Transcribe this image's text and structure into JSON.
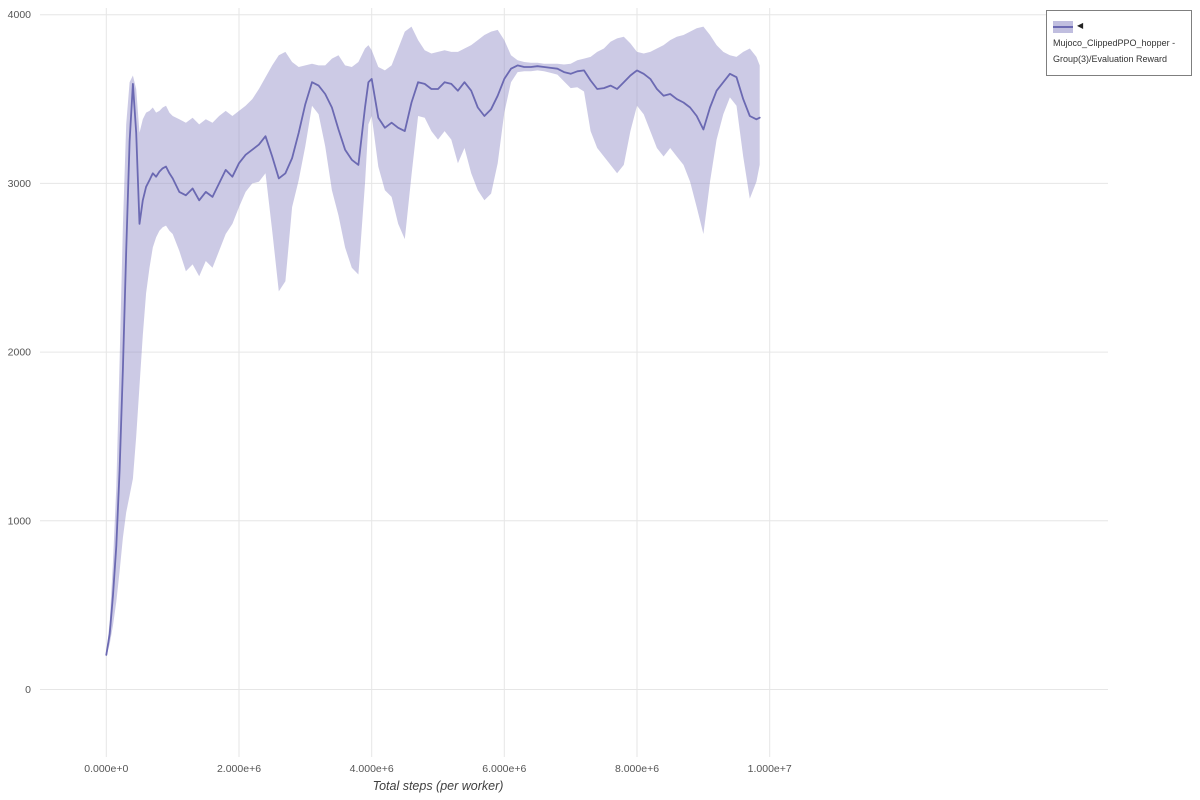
{
  "legend": {
    "marker": "◀",
    "label": "Mujoco_ClippedPPO_hopper - Group(3)/Evaluation Reward"
  },
  "colors": {
    "line": "#6b69b2",
    "band": "#8d89c5",
    "band_opacity": 0.45,
    "grid": "#e6e6e6",
    "tick_text": "#555555"
  },
  "chart_data": {
    "type": "line",
    "title": "",
    "xlabel": "Total steps (per worker)",
    "ylabel": "",
    "legend_position": "top-right-outside",
    "grid": true,
    "xlim": [
      -1000000.0,
      15100000.0
    ],
    "ylim": [
      -400,
      4040
    ],
    "x_tick_values": [
      0,
      2000000.0,
      4000000.0,
      6000000.0,
      8000000.0,
      10000000.0
    ],
    "x_tick_labels": [
      "0.000e+0",
      "2.000e+6",
      "4.000e+6",
      "6.000e+6",
      "8.000e+6",
      "1.000e+7"
    ],
    "y_tick_values": [
      0,
      1000,
      2000,
      3000,
      4000
    ],
    "y_tick_labels": [
      "0",
      "1000",
      "2000",
      "3000",
      "4000"
    ],
    "point_format": [
      "x",
      "mean",
      "lower",
      "upper"
    ],
    "series": [
      {
        "name": "Mujoco_ClippedPPO_hopper - Group(3)/Evaluation Reward",
        "points": [
          [
            0,
            205,
            195,
            215
          ],
          [
            50000.0,
            330,
            270,
            400
          ],
          [
            100000.0,
            560,
            380,
            760
          ],
          [
            150000.0,
            850,
            520,
            1200
          ],
          [
            200000.0,
            1300,
            700,
            1950
          ],
          [
            250000.0,
            1900,
            900,
            2750
          ],
          [
            300000.0,
            2600,
            1050,
            3350
          ],
          [
            350000.0,
            3250,
            1150,
            3600
          ],
          [
            400000.0,
            3590,
            1250,
            3640
          ],
          [
            450000.0,
            3300,
            1500,
            3560
          ],
          [
            500000.0,
            2760,
            1800,
            3300
          ],
          [
            550000.0,
            2900,
            2100,
            3380
          ],
          [
            600000.0,
            2980,
            2350,
            3420
          ],
          [
            650000.0,
            3020,
            2500,
            3430
          ],
          [
            700000.0,
            3060,
            2620,
            3450
          ],
          [
            750000.0,
            3040,
            2680,
            3420
          ],
          [
            800000.0,
            3070,
            2720,
            3430
          ],
          [
            850000.0,
            3090,
            2740,
            3450
          ],
          [
            900000.0,
            3100,
            2750,
            3460
          ],
          [
            950000.0,
            3060,
            2720,
            3420
          ],
          [
            1000000.0,
            3030,
            2700,
            3400
          ],
          [
            1100000.0,
            2950,
            2600,
            3380
          ],
          [
            1200000.0,
            2930,
            2480,
            3360
          ],
          [
            1300000.0,
            2970,
            2520,
            3390
          ],
          [
            1400000.0,
            2900,
            2450,
            3350
          ],
          [
            1500000.0,
            2950,
            2540,
            3380
          ],
          [
            1600000.0,
            2920,
            2500,
            3360
          ],
          [
            1700000.0,
            3000,
            2600,
            3400
          ],
          [
            1800000.0,
            3080,
            2700,
            3430
          ],
          [
            1900000.0,
            3040,
            2760,
            3400
          ],
          [
            2000000.0,
            3120,
            2860,
            3430
          ],
          [
            2100000.0,
            3170,
            2950,
            3460
          ],
          [
            2200000.0,
            3200,
            3000,
            3500
          ],
          [
            2300000.0,
            3230,
            3010,
            3560
          ],
          [
            2400000.0,
            3280,
            3060,
            3630
          ],
          [
            2500000.0,
            3160,
            2720,
            3700
          ],
          [
            2600000.0,
            3030,
            2360,
            3760
          ],
          [
            2700000.0,
            3060,
            2420,
            3780
          ],
          [
            2800000.0,
            3150,
            2860,
            3720
          ],
          [
            2900000.0,
            3300,
            3020,
            3690
          ],
          [
            3000000.0,
            3470,
            3220,
            3700
          ],
          [
            3100000.0,
            3600,
            3460,
            3710
          ],
          [
            3200000.0,
            3580,
            3410,
            3700
          ],
          [
            3300000.0,
            3530,
            3220,
            3700
          ],
          [
            3400000.0,
            3450,
            2960,
            3740
          ],
          [
            3500000.0,
            3320,
            2810,
            3760
          ],
          [
            3600000.0,
            3200,
            2620,
            3700
          ],
          [
            3700000.0,
            3140,
            2500,
            3690
          ],
          [
            3800000.0,
            3110,
            2460,
            3720
          ],
          [
            3900000.0,
            3450,
            3000,
            3800
          ],
          [
            3950000.0,
            3600,
            3350,
            3820
          ],
          [
            4000000.0,
            3620,
            3400,
            3790
          ],
          [
            4100000.0,
            3390,
            3100,
            3690
          ],
          [
            4200000.0,
            3330,
            2960,
            3670
          ],
          [
            4300000.0,
            3360,
            2920,
            3700
          ],
          [
            4400000.0,
            3330,
            2760,
            3800
          ],
          [
            4500000.0,
            3310,
            2670,
            3900
          ],
          [
            4600000.0,
            3480,
            3050,
            3930
          ],
          [
            4700000.0,
            3600,
            3400,
            3850
          ],
          [
            4800000.0,
            3590,
            3390,
            3790
          ],
          [
            4900000.0,
            3560,
            3310,
            3770
          ],
          [
            5000000.0,
            3560,
            3260,
            3780
          ],
          [
            5100000.0,
            3600,
            3310,
            3790
          ],
          [
            5200000.0,
            3590,
            3260,
            3780
          ],
          [
            5300000.0,
            3550,
            3120,
            3780
          ],
          [
            5400000.0,
            3600,
            3210,
            3800
          ],
          [
            5500000.0,
            3550,
            3060,
            3820
          ],
          [
            5600000.0,
            3450,
            2960,
            3850
          ],
          [
            5700000.0,
            3400,
            2900,
            3880
          ],
          [
            5800000.0,
            3440,
            2940,
            3900
          ],
          [
            5900000.0,
            3520,
            3120,
            3910
          ],
          [
            6000000.0,
            3620,
            3420,
            3850
          ],
          [
            6100000.0,
            3680,
            3600,
            3760
          ],
          [
            6200000.0,
            3700,
            3660,
            3730
          ],
          [
            6300000.0,
            3690,
            3665,
            3720
          ],
          [
            6400000.0,
            3690,
            3665,
            3715
          ],
          [
            6500000.0,
            3695,
            3670,
            3715
          ],
          [
            6600000.0,
            3690,
            3665,
            3710
          ],
          [
            6700000.0,
            3685,
            3655,
            3710
          ],
          [
            6800000.0,
            3680,
            3645,
            3710
          ],
          [
            6900000.0,
            3660,
            3605,
            3705
          ],
          [
            7000000.0,
            3650,
            3565,
            3710
          ],
          [
            7100000.0,
            3665,
            3570,
            3730
          ],
          [
            7200000.0,
            3670,
            3545,
            3740
          ],
          [
            7300000.0,
            3610,
            3310,
            3750
          ],
          [
            7400000.0,
            3560,
            3210,
            3780
          ],
          [
            7500000.0,
            3565,
            3160,
            3800
          ],
          [
            7600000.0,
            3580,
            3110,
            3840
          ],
          [
            7700000.0,
            3560,
            3060,
            3860
          ],
          [
            7800000.0,
            3600,
            3110,
            3870
          ],
          [
            7900000.0,
            3640,
            3310,
            3830
          ],
          [
            8000000.0,
            3670,
            3460,
            3780
          ],
          [
            8100000.0,
            3650,
            3410,
            3770
          ],
          [
            8200000.0,
            3620,
            3310,
            3780
          ],
          [
            8300000.0,
            3560,
            3210,
            3800
          ],
          [
            8400000.0,
            3520,
            3160,
            3820
          ],
          [
            8500000.0,
            3530,
            3210,
            3850
          ],
          [
            8600000.0,
            3500,
            3160,
            3870
          ],
          [
            8700000.0,
            3480,
            3110,
            3880
          ],
          [
            8800000.0,
            3450,
            3010,
            3900
          ],
          [
            8900000.0,
            3400,
            2860,
            3920
          ],
          [
            9000000.0,
            3320,
            2700,
            3930
          ],
          [
            9100000.0,
            3450,
            3010,
            3880
          ],
          [
            9200000.0,
            3550,
            3260,
            3820
          ],
          [
            9300000.0,
            3600,
            3410,
            3780
          ],
          [
            9400000.0,
            3650,
            3510,
            3760
          ],
          [
            9500000.0,
            3630,
            3460,
            3750
          ],
          [
            9600000.0,
            3500,
            3160,
            3780
          ],
          [
            9700000.0,
            3400,
            2910,
            3800
          ],
          [
            9800000.0,
            3380,
            3010,
            3750
          ],
          [
            9850000.0,
            3390,
            3110,
            3700
          ]
        ]
      }
    ]
  }
}
